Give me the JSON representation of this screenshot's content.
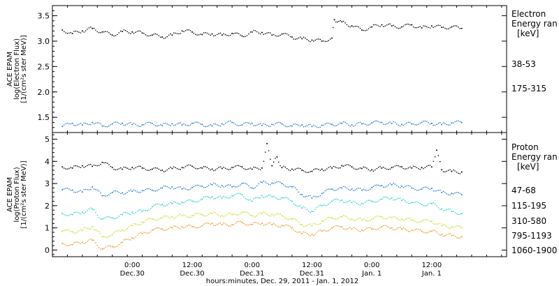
{
  "chart_data": [
    {
      "type": "scatter",
      "panel": "electron",
      "ylabel_lines": [
        "ACE EPAM",
        "log(Electron Flux)",
        "[1/(cm²s ster MeV)]"
      ],
      "legend_title_lines": [
        "Electron",
        "Energy ran",
        "[keV]"
      ],
      "ylim": [
        1.2,
        3.7
      ],
      "yticks": [
        1.5,
        2.0,
        2.5,
        3.0,
        3.5
      ],
      "ytick_labels": [
        "1.5",
        "2.0",
        "2.5",
        "3.0",
        "3.5"
      ],
      "grid": false,
      "series": [
        {
          "name": "38-53",
          "color": "#000000",
          "x": [
            -14,
            -12,
            -10,
            -8,
            -6,
            -4,
            -2,
            0,
            2,
            4,
            6,
            8,
            10,
            12,
            14,
            16,
            18,
            20,
            22,
            24,
            26,
            28,
            30,
            32,
            34,
            36,
            38,
            40,
            40.5,
            42,
            44,
            46,
            48,
            50,
            52,
            54,
            56,
            58,
            60,
            62,
            64,
            66
          ],
          "y": [
            3.22,
            3.15,
            3.2,
            3.25,
            3.18,
            3.12,
            3.19,
            3.18,
            3.16,
            3.12,
            3.08,
            3.12,
            3.2,
            3.18,
            3.13,
            3.14,
            3.12,
            3.15,
            3.1,
            3.18,
            3.17,
            3.12,
            3.14,
            3.08,
            3.05,
            3.02,
            3.0,
            3.06,
            3.42,
            3.38,
            3.3,
            3.22,
            3.28,
            3.32,
            3.3,
            3.28,
            3.32,
            3.26,
            3.3,
            3.27,
            3.28,
            3.25
          ]
        },
        {
          "name": "175-315",
          "color": "#1f78d0",
          "x": [
            -14,
            -12,
            -10,
            -8,
            -6,
            -4,
            -2,
            0,
            2,
            4,
            6,
            8,
            10,
            12,
            14,
            16,
            18,
            20,
            22,
            24,
            26,
            28,
            30,
            32,
            34,
            36,
            38,
            40,
            42,
            44,
            46,
            48,
            50,
            52,
            54,
            56,
            58,
            60,
            62,
            64,
            66
          ],
          "y": [
            1.32,
            1.38,
            1.35,
            1.4,
            1.33,
            1.37,
            1.38,
            1.36,
            1.35,
            1.38,
            1.34,
            1.37,
            1.35,
            1.38,
            1.36,
            1.33,
            1.37,
            1.4,
            1.35,
            1.38,
            1.34,
            1.36,
            1.37,
            1.33,
            1.35,
            1.32,
            1.34,
            1.36,
            1.38,
            1.35,
            1.37,
            1.39,
            1.4,
            1.38,
            1.36,
            1.37,
            1.4,
            1.38,
            1.36,
            1.39,
            1.4
          ]
        }
      ]
    },
    {
      "type": "scatter",
      "panel": "proton",
      "ylabel_lines": [
        "ACE EPAM",
        "log(Proton Flux)",
        "[1/(cm²s ster MeV)]"
      ],
      "legend_title_lines": [
        "Proton",
        "Energy ran",
        "[keV]"
      ],
      "ylim": [
        -0.3,
        5.3
      ],
      "yticks": [
        0,
        1,
        2,
        3,
        4,
        5
      ],
      "ytick_labels": [
        "0",
        "1",
        "2",
        "3",
        "4",
        "5"
      ],
      "grid": false,
      "series": [
        {
          "name": "47-68",
          "color": "#000000",
          "x": [
            -14,
            -12,
            -10,
            -8,
            -6,
            -4,
            -2,
            0,
            2,
            4,
            6,
            8,
            10,
            12,
            14,
            16,
            18,
            20,
            22,
            24,
            26,
            27,
            28,
            29,
            30,
            32,
            34,
            36,
            38,
            40,
            42,
            44,
            46,
            48,
            50,
            52,
            54,
            56,
            58,
            60,
            61,
            62,
            64,
            66
          ],
          "y": [
            3.75,
            3.7,
            3.8,
            3.78,
            3.95,
            3.72,
            3.65,
            3.72,
            3.7,
            3.65,
            3.6,
            3.68,
            3.72,
            3.78,
            3.7,
            3.65,
            3.68,
            3.72,
            3.75,
            3.65,
            3.7,
            4.8,
            3.8,
            4.2,
            3.72,
            3.65,
            3.6,
            3.55,
            3.65,
            3.7,
            3.8,
            3.75,
            3.68,
            3.62,
            3.7,
            3.72,
            3.75,
            3.7,
            3.72,
            3.75,
            4.5,
            3.62,
            3.55,
            3.52
          ]
        },
        {
          "name": "115-195",
          "color": "#1f78d0",
          "x": [
            -14,
            -12,
            -10,
            -8,
            -6,
            -4,
            -2,
            0,
            2,
            4,
            6,
            8,
            10,
            12,
            14,
            16,
            18,
            20,
            22,
            24,
            26,
            28,
            30,
            32,
            34,
            36,
            38,
            40,
            42,
            44,
            46,
            48,
            50,
            52,
            54,
            56,
            58,
            60,
            62,
            64,
            66
          ],
          "y": [
            2.72,
            2.7,
            2.62,
            2.85,
            2.45,
            2.6,
            2.58,
            2.65,
            2.68,
            2.7,
            2.8,
            2.85,
            2.75,
            2.82,
            2.88,
            2.95,
            2.9,
            2.85,
            3.0,
            2.8,
            3.05,
            3.02,
            3.0,
            2.85,
            2.5,
            2.35,
            2.55,
            2.75,
            2.8,
            2.75,
            2.7,
            2.82,
            2.9,
            2.95,
            2.88,
            2.8,
            2.75,
            2.78,
            2.6,
            2.55,
            2.5
          ]
        },
        {
          "name": "310-580",
          "color": "#20d0c8",
          "x": [
            -14,
            -12,
            -10,
            -8,
            -6,
            -4,
            -2,
            0,
            2,
            4,
            6,
            8,
            10,
            12,
            14,
            16,
            18,
            20,
            22,
            24,
            26,
            28,
            30,
            32,
            34,
            36,
            38,
            40,
            42,
            44,
            46,
            48,
            50,
            52,
            54,
            56,
            58,
            60,
            62,
            64,
            66
          ],
          "y": [
            1.65,
            1.6,
            1.7,
            1.85,
            1.4,
            1.45,
            1.6,
            1.7,
            1.75,
            1.95,
            2.05,
            2.1,
            2.15,
            2.2,
            2.3,
            2.4,
            2.35,
            2.45,
            2.5,
            2.2,
            2.45,
            2.4,
            2.35,
            2.2,
            1.9,
            1.75,
            2.0,
            2.2,
            2.25,
            2.15,
            2.1,
            2.2,
            2.3,
            2.35,
            2.25,
            2.15,
            2.05,
            2.1,
            1.85,
            1.75,
            1.65
          ]
        },
        {
          "name": "795-1193",
          "color": "#c8e01a",
          "x": [
            -14,
            -12,
            -10,
            -8,
            -6,
            -4,
            -2,
            0,
            2,
            4,
            6,
            8,
            10,
            12,
            14,
            16,
            18,
            20,
            22,
            24,
            26,
            28,
            30,
            32,
            34,
            36,
            38,
            40,
            42,
            44,
            46,
            48,
            50,
            52,
            54,
            56,
            58,
            60,
            62,
            64,
            66
          ],
          "y": [
            0.85,
            0.82,
            0.9,
            1.05,
            0.6,
            0.7,
            0.9,
            1.1,
            1.25,
            1.4,
            1.45,
            1.5,
            1.55,
            1.55,
            1.6,
            1.65,
            1.55,
            1.6,
            1.7,
            1.55,
            1.65,
            1.6,
            1.55,
            1.4,
            1.15,
            1.1,
            1.3,
            1.45,
            1.5,
            1.4,
            1.35,
            1.4,
            1.5,
            1.45,
            1.4,
            1.35,
            1.3,
            1.3,
            1.1,
            1.05,
            1.0
          ]
        },
        {
          "name": "1060-1900",
          "color": "#f0921e",
          "x": [
            -14,
            -12,
            -10,
            -8,
            -6,
            -4,
            -2,
            0,
            2,
            4,
            6,
            8,
            10,
            12,
            14,
            16,
            18,
            20,
            22,
            24,
            26,
            28,
            30,
            32,
            34,
            36,
            38,
            40,
            42,
            44,
            46,
            48,
            50,
            52,
            54,
            56,
            58,
            60,
            62,
            64,
            66
          ],
          "y": [
            0.3,
            0.25,
            0.35,
            0.45,
            0.05,
            0.15,
            0.35,
            0.55,
            0.75,
            0.9,
            0.95,
            1.0,
            1.05,
            1.05,
            1.1,
            1.2,
            1.15,
            1.15,
            1.25,
            1.15,
            1.2,
            1.15,
            1.1,
            1.0,
            0.75,
            0.7,
            0.85,
            1.0,
            1.05,
            0.95,
            0.9,
            0.95,
            1.05,
            1.0,
            0.95,
            0.9,
            0.85,
            0.85,
            0.7,
            0.65,
            0.6
          ]
        }
      ]
    }
  ],
  "xaxis": {
    "title": "hours:minutes, Dec. 29, 2011 - Jan.  1, 2012",
    "xlim": [
      -16,
      75
    ],
    "ticks": [
      {
        "x": 0,
        "time": "0:00",
        "date": "Dec.30"
      },
      {
        "x": 12,
        "time": "12:00",
        "date": "Dec.30"
      },
      {
        "x": 24,
        "time": "0:00",
        "date": "Dec.31"
      },
      {
        "x": 36,
        "time": "12:00",
        "date": "Dec.31"
      },
      {
        "x": 48,
        "time": "0:00",
        "date": "Jan.  1"
      },
      {
        "x": 60,
        "time": "12:00",
        "date": "Jan.  1"
      }
    ],
    "minor_step_hours": 3
  }
}
